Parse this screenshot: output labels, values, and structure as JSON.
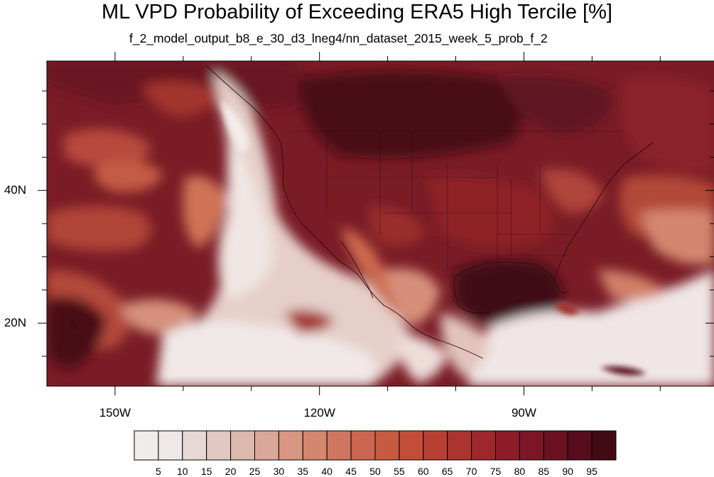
{
  "title": "ML VPD Probability of Exceeding ERA5 High Tercile [%]",
  "subtitle": "f_2_model_output_b8_e_30_d3_lneg4/nn_dataset_2015_week_5_prob_f_2",
  "map": {
    "lon_range": [
      -160,
      -62
    ],
    "lat_range": [
      10.5,
      59.5
    ],
    "lat_labels": [
      {
        "lat": 40,
        "text": "40N"
      },
      {
        "lat": 20,
        "text": "20N"
      }
    ],
    "lon_labels": [
      {
        "lon": -150,
        "text": "150W"
      },
      {
        "lon": -120,
        "text": "120W"
      },
      {
        "lon": -90,
        "text": "90W"
      }
    ]
  },
  "colorbar": {
    "labels": [
      "5",
      "10",
      "15",
      "20",
      "25",
      "30",
      "35",
      "40",
      "45",
      "50",
      "55",
      "60",
      "65",
      "70",
      "75",
      "80",
      "85",
      "90",
      "95"
    ],
    "colors": [
      "#efe8e8",
      "#e8d8d5",
      "#e2c8c2",
      "#dcb8ad",
      "#d9a898",
      "#d79782",
      "#d4866e",
      "#d07560",
      "#cc6650",
      "#c95a42",
      "#c24e38",
      "#b84032",
      "#ac342e",
      "#9e272b",
      "#8e1c29",
      "#7c1626",
      "#6a1222",
      "#570d1d",
      "#430a16"
    ]
  }
}
